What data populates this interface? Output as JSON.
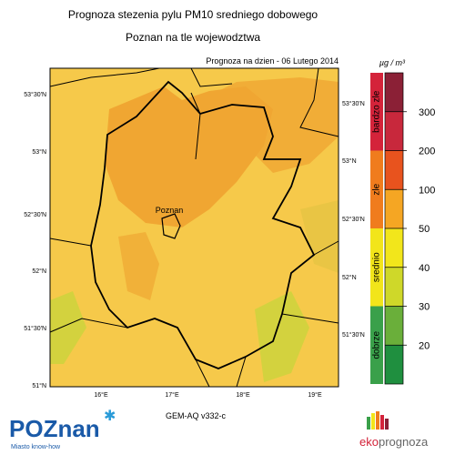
{
  "header": {
    "title": "Prognoza stezenia pylu PM10 sredniego dobowego",
    "subtitle": "Poznan na tle wojewodztwa"
  },
  "map": {
    "date_label": "Prognoza na dzien -  06 Lutego 2014",
    "city_label": "Poznan",
    "lat_labels_left": [
      "53°30'N",
      "53°N",
      "52°30'N",
      "52°N",
      "51°30'N",
      "51°N"
    ],
    "lat_labels_right": [
      "53°30'N",
      "53°N",
      "52°30'N",
      "52°N",
      "51°30'N"
    ],
    "lon_labels": [
      "16°E",
      "17°E",
      "18°E",
      "19°E"
    ],
    "model": "GEM-AQ v332-c"
  },
  "legend": {
    "unit": "µg / m³",
    "categories": [
      "bardzo zle",
      "zle",
      "srednio",
      "dobrze"
    ],
    "category_colors": [
      "#d4233a",
      "#f07c1d",
      "#f2e51a",
      "#3aa04a"
    ],
    "levels": [
      300,
      200,
      100,
      50,
      40,
      30,
      20
    ],
    "level_colors": [
      "#8b2036",
      "#c8283c",
      "#e8531e",
      "#f5a623",
      "#f2e61b",
      "#cfd829",
      "#6aaf3a",
      "#1f8f3f"
    ]
  },
  "footer": {
    "logo_left": "POZnan",
    "tagline": "Miasto know-how",
    "logo_right_prefix": "eko",
    "logo_right_suffix": "prognoza"
  }
}
